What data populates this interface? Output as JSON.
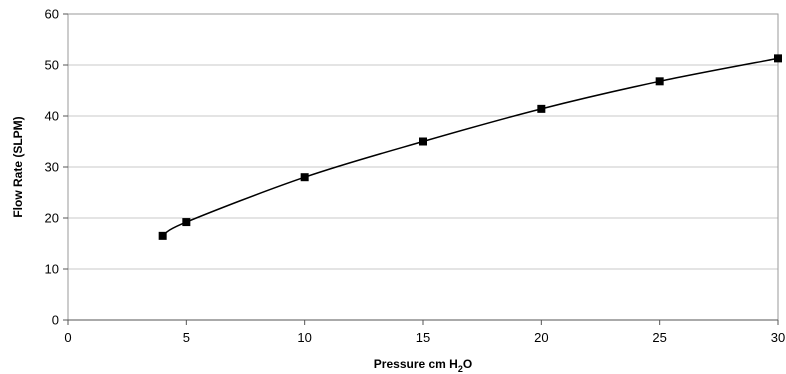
{
  "chart_data": {
    "type": "line",
    "title": "",
    "xlabel": "Pressure cm H",
    "xlabel_subscript": "2",
    "xlabel_suffix": "O",
    "ylabel": "Flow Rate (SLPM)",
    "xlim": [
      0,
      30
    ],
    "ylim": [
      0,
      60
    ],
    "xticks": [
      "0",
      "5",
      "10",
      "15",
      "20",
      "25",
      "30"
    ],
    "yticks": [
      "0",
      "10",
      "20",
      "30",
      "40",
      "50",
      "60"
    ],
    "grid": "horizontal",
    "legend": "none",
    "series": [
      {
        "x": [
          4,
          5,
          10,
          15,
          20,
          25,
          30
        ],
        "values": [
          16.5,
          19.2,
          28,
          35,
          41.4,
          46.8,
          51.3
        ]
      }
    ],
    "colors": {
      "line": "#000000",
      "marker": "#000000",
      "grid": "#c8c8c8",
      "frame": "#9a9a9a"
    }
  }
}
